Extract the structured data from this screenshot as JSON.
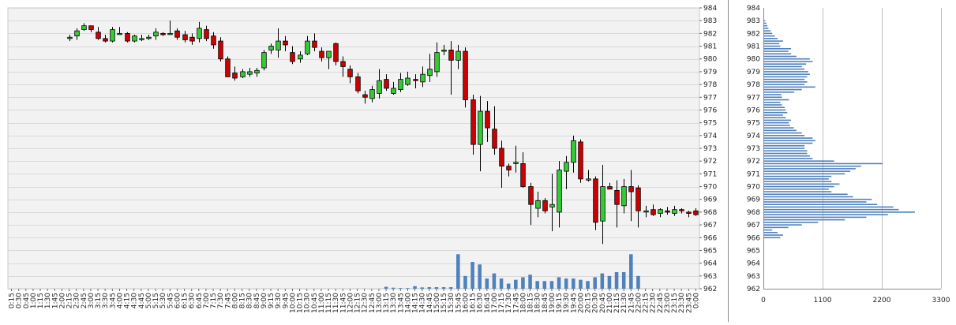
{
  "chart_data": [
    {
      "type": "candlestick",
      "ylim": [
        962,
        984
      ],
      "y_ticks": [
        "962",
        "963",
        "964",
        "965",
        "966",
        "967",
        "968",
        "969",
        "970",
        "971",
        "972",
        "973",
        "974",
        "975",
        "976",
        "977",
        "978",
        "979",
        "980",
        "981",
        "982",
        "983",
        "984"
      ],
      "x_labels": [
        "0:15",
        "0:30",
        "0:45",
        "1:00",
        "1:15",
        "1:30",
        "1:45",
        "2:00",
        "2:15",
        "2:30",
        "2:45",
        "3:00",
        "3:15",
        "3:30",
        "3:45",
        "4:00",
        "4:15",
        "4:30",
        "4:45",
        "5:00",
        "5:15",
        "5:30",
        "5:45",
        "6:00",
        "6:15",
        "6:30",
        "6:45",
        "7:00",
        "7:15",
        "7:30",
        "7:45",
        "8:00",
        "8:15",
        "8:30",
        "8:45",
        "9:00",
        "9:15",
        "9:30",
        "9:45",
        "10:00",
        "10:15",
        "10:30",
        "10:45",
        "11:00",
        "11:15",
        "11:30",
        "11:45",
        "12:00",
        "12:15",
        "12:30",
        "12:45",
        "13:00",
        "13:15",
        "13:30",
        "13:45",
        "14:00",
        "14:15",
        "14:30",
        "14:45",
        "15:00",
        "15:15",
        "15:30",
        "15:45",
        "16:00",
        "16:15",
        "16:30",
        "16:45",
        "17:00",
        "17:15",
        "17:30",
        "17:45",
        "18:00",
        "18:15",
        "18:30",
        "18:45",
        "19:00",
        "19:15",
        "19:30",
        "19:45",
        "20:00",
        "20:15",
        "20:30",
        "20:45",
        "21:00",
        "21:15",
        "21:30",
        "21:45",
        "22:00",
        "22:15",
        "22:30",
        "22:45",
        "23:00",
        "23:15",
        "23:30",
        "23:45",
        "0:00"
      ],
      "candles": [
        {
          "x": "2:15",
          "o": 981.6,
          "h": 981.9,
          "l": 981.4,
          "c": 981.7
        },
        {
          "x": "2:30",
          "o": 981.8,
          "h": 982.4,
          "l": 981.5,
          "c": 982.2
        },
        {
          "x": "2:45",
          "o": 982.3,
          "h": 982.8,
          "l": 982.2,
          "c": 982.6
        },
        {
          "x": "3:00",
          "o": 982.6,
          "h": 982.6,
          "l": 982.1,
          "c": 982.3
        },
        {
          "x": "3:15",
          "o": 982.1,
          "h": 982.5,
          "l": 981.5,
          "c": 981.6
        },
        {
          "x": "3:30",
          "o": 981.6,
          "h": 981.9,
          "l": 981.3,
          "c": 981.4
        },
        {
          "x": "3:45",
          "o": 981.4,
          "h": 982.5,
          "l": 981.3,
          "c": 982.3
        },
        {
          "x": "4:00",
          "o": 982.0,
          "h": 982.5,
          "l": 981.9,
          "c": 982.0
        },
        {
          "x": "4:15",
          "o": 982.0,
          "h": 982.1,
          "l": 981.3,
          "c": 981.4
        },
        {
          "x": "4:30",
          "o": 981.4,
          "h": 981.9,
          "l": 981.3,
          "c": 981.8
        },
        {
          "x": "4:45",
          "o": 981.6,
          "h": 981.9,
          "l": 981.4,
          "c": 981.6
        },
        {
          "x": "5:00",
          "o": 981.6,
          "h": 981.9,
          "l": 981.5,
          "c": 981.7
        },
        {
          "x": "5:15",
          "o": 981.8,
          "h": 982.4,
          "l": 981.5,
          "c": 982.1
        },
        {
          "x": "5:30",
          "o": 982.0,
          "h": 982.1,
          "l": 981.8,
          "c": 981.9
        },
        {
          "x": "5:45",
          "o": 982.0,
          "h": 983.0,
          "l": 982.0,
          "c": 982.0
        },
        {
          "x": "6:00",
          "o": 982.2,
          "h": 982.4,
          "l": 981.5,
          "c": 981.7
        },
        {
          "x": "6:15",
          "o": 981.9,
          "h": 982.2,
          "l": 981.3,
          "c": 981.5
        },
        {
          "x": "6:30",
          "o": 981.7,
          "h": 982.0,
          "l": 981.1,
          "c": 981.4
        },
        {
          "x": "6:45",
          "o": 981.6,
          "h": 982.9,
          "l": 981.3,
          "c": 982.4
        },
        {
          "x": "7:00",
          "o": 982.3,
          "h": 982.6,
          "l": 981.4,
          "c": 981.6
        },
        {
          "x": "7:15",
          "o": 981.8,
          "h": 982.1,
          "l": 980.8,
          "c": 981.1
        },
        {
          "x": "7:30",
          "o": 981.4,
          "h": 981.7,
          "l": 979.8,
          "c": 980.0
        },
        {
          "x": "7:45",
          "o": 980.0,
          "h": 980.2,
          "l": 978.6,
          "c": 978.6
        },
        {
          "x": "8:00",
          "o": 978.9,
          "h": 979.4,
          "l": 978.3,
          "c": 978.5
        },
        {
          "x": "8:15",
          "o": 978.6,
          "h": 979.2,
          "l": 978.5,
          "c": 979.0
        },
        {
          "x": "8:30",
          "o": 978.8,
          "h": 979.3,
          "l": 978.6,
          "c": 979.0
        },
        {
          "x": "8:45",
          "o": 978.9,
          "h": 979.3,
          "l": 978.6,
          "c": 979.1
        },
        {
          "x": "9:00",
          "o": 979.3,
          "h": 980.7,
          "l": 979.1,
          "c": 980.5
        },
        {
          "x": "9:15",
          "o": 980.7,
          "h": 981.2,
          "l": 980.4,
          "c": 981.0
        },
        {
          "x": "9:30",
          "o": 980.7,
          "h": 982.4,
          "l": 980.1,
          "c": 981.4
        },
        {
          "x": "9:45",
          "o": 981.4,
          "h": 981.8,
          "l": 980.6,
          "c": 981.1
        },
        {
          "x": "10:00",
          "o": 980.5,
          "h": 981.0,
          "l": 979.6,
          "c": 979.8
        },
        {
          "x": "10:15",
          "o": 980.0,
          "h": 980.6,
          "l": 979.7,
          "c": 980.3
        },
        {
          "x": "10:30",
          "o": 980.4,
          "h": 981.8,
          "l": 980.3,
          "c": 981.4
        },
        {
          "x": "10:45",
          "o": 981.4,
          "h": 982.0,
          "l": 980.6,
          "c": 980.9
        },
        {
          "x": "11:00",
          "o": 980.6,
          "h": 980.9,
          "l": 979.8,
          "c": 980.1
        },
        {
          "x": "11:15",
          "o": 980.1,
          "h": 980.6,
          "l": 979.2,
          "c": 980.6
        },
        {
          "x": "11:30",
          "o": 981.2,
          "h": 981.3,
          "l": 979.5,
          "c": 979.8
        },
        {
          "x": "11:45",
          "o": 979.8,
          "h": 980.2,
          "l": 978.6,
          "c": 979.4
        },
        {
          "x": "12:00",
          "o": 979.2,
          "h": 979.5,
          "l": 978.1,
          "c": 978.6
        },
        {
          "x": "12:15",
          "o": 978.6,
          "h": 978.9,
          "l": 977.3,
          "c": 977.5
        },
        {
          "x": "12:30",
          "o": 977.2,
          "h": 977.5,
          "l": 976.5,
          "c": 977.0
        },
        {
          "x": "12:45",
          "o": 976.9,
          "h": 977.9,
          "l": 976.6,
          "c": 977.6
        },
        {
          "x": "13:00",
          "o": 977.3,
          "h": 979.2,
          "l": 976.9,
          "c": 978.3
        },
        {
          "x": "13:15",
          "o": 978.4,
          "h": 978.8,
          "l": 977.5,
          "c": 977.7
        },
        {
          "x": "13:30",
          "o": 977.3,
          "h": 978.2,
          "l": 977.2,
          "c": 977.7
        },
        {
          "x": "13:45",
          "o": 977.6,
          "h": 978.9,
          "l": 977.4,
          "c": 978.4
        },
        {
          "x": "14:00",
          "o": 978.0,
          "h": 979.0,
          "l": 977.9,
          "c": 978.5
        },
        {
          "x": "14:15",
          "o": 978.4,
          "h": 978.8,
          "l": 977.7,
          "c": 978.3
        },
        {
          "x": "14:30",
          "o": 978.2,
          "h": 979.4,
          "l": 977.8,
          "c": 978.8
        },
        {
          "x": "14:45",
          "o": 978.7,
          "h": 980.4,
          "l": 978.2,
          "c": 979.2
        },
        {
          "x": "15:00",
          "o": 979.0,
          "h": 981.3,
          "l": 978.6,
          "c": 980.5
        },
        {
          "x": "15:15",
          "o": 980.6,
          "h": 981.1,
          "l": 980.3,
          "c": 980.7
        },
        {
          "x": "15:30",
          "o": 980.7,
          "h": 981.4,
          "l": 977.2,
          "c": 979.9
        },
        {
          "x": "15:45",
          "o": 979.9,
          "h": 981.1,
          "l": 979.2,
          "c": 980.6
        },
        {
          "x": "16:00",
          "o": 980.6,
          "h": 980.9,
          "l": 976.2,
          "c": 976.8
        },
        {
          "x": "16:15",
          "o": 976.8,
          "h": 977.2,
          "l": 972.5,
          "c": 973.3
        },
        {
          "x": "16:30",
          "o": 973.3,
          "h": 977.1,
          "l": 971.2,
          "c": 975.9
        },
        {
          "x": "16:45",
          "o": 975.9,
          "h": 976.7,
          "l": 973.5,
          "c": 974.6
        },
        {
          "x": "17:00",
          "o": 974.5,
          "h": 976.3,
          "l": 972.5,
          "c": 973.0
        },
        {
          "x": "17:15",
          "o": 973.0,
          "h": 973.6,
          "l": 969.9,
          "c": 971.6
        },
        {
          "x": "17:30",
          "o": 971.6,
          "h": 971.8,
          "l": 970.8,
          "c": 971.3
        },
        {
          "x": "17:45",
          "o": 971.8,
          "h": 973.2,
          "l": 971.1,
          "c": 971.9
        },
        {
          "x": "18:00",
          "o": 971.8,
          "h": 972.7,
          "l": 969.9,
          "c": 970.0
        },
        {
          "x": "18:15",
          "o": 970.0,
          "h": 970.3,
          "l": 967.0,
          "c": 968.6
        },
        {
          "x": "18:30",
          "o": 968.3,
          "h": 969.6,
          "l": 967.6,
          "c": 968.9
        },
        {
          "x": "18:45",
          "o": 968.9,
          "h": 969.1,
          "l": 967.9,
          "c": 968.1
        },
        {
          "x": "19:00",
          "o": 968.4,
          "h": 971.0,
          "l": 966.5,
          "c": 968.6
        },
        {
          "x": "19:15",
          "o": 968.0,
          "h": 972.0,
          "l": 966.8,
          "c": 971.3
        },
        {
          "x": "19:30",
          "o": 971.2,
          "h": 972.4,
          "l": 969.8,
          "c": 971.9
        },
        {
          "x": "19:45",
          "o": 971.9,
          "h": 974.0,
          "l": 971.1,
          "c": 973.6
        },
        {
          "x": "20:00",
          "o": 973.5,
          "h": 973.7,
          "l": 970.3,
          "c": 970.6
        },
        {
          "x": "20:15",
          "o": 970.6,
          "h": 971.3,
          "l": 970.4,
          "c": 970.6
        },
        {
          "x": "20:30",
          "o": 970.6,
          "h": 970.8,
          "l": 966.6,
          "c": 967.2
        },
        {
          "x": "20:45",
          "o": 967.3,
          "h": 971.7,
          "l": 965.5,
          "c": 970.0
        },
        {
          "x": "21:00",
          "o": 970.0,
          "h": 970.3,
          "l": 969.8,
          "c": 969.8
        },
        {
          "x": "21:15",
          "o": 969.7,
          "h": 970.5,
          "l": 966.8,
          "c": 968.6
        },
        {
          "x": "21:30",
          "o": 968.5,
          "h": 970.6,
          "l": 967.9,
          "c": 970.0
        },
        {
          "x": "21:45",
          "o": 970.0,
          "h": 971.3,
          "l": 967.3,
          "c": 969.6
        },
        {
          "x": "22:00",
          "o": 969.9,
          "h": 970.1,
          "l": 966.8,
          "c": 968.1
        },
        {
          "x": "22:15",
          "o": 968.1,
          "h": 968.5,
          "l": 967.6,
          "c": 968.1
        },
        {
          "x": "22:30",
          "o": 968.2,
          "h": 968.6,
          "l": 967.7,
          "c": 967.8
        },
        {
          "x": "22:45",
          "o": 967.9,
          "h": 968.3,
          "l": 967.6,
          "c": 968.2
        },
        {
          "x": "23:00",
          "o": 968.1,
          "h": 968.4,
          "l": 967.8,
          "c": 968.0
        },
        {
          "x": "23:15",
          "o": 967.9,
          "h": 968.5,
          "l": 967.7,
          "c": 968.2
        },
        {
          "x": "23:30",
          "o": 968.2,
          "h": 968.3,
          "l": 967.9,
          "c": 968.1
        },
        {
          "x": "23:45",
          "o": 968.0,
          "h": 968.1,
          "l": 967.6,
          "c": 967.9
        },
        {
          "x": "0:00",
          "o": 968.1,
          "h": 968.3,
          "l": 967.7,
          "c": 967.8
        }
      ],
      "volume": {
        "x": [
          "13:15",
          "13:30",
          "13:45",
          "14:00",
          "14:15",
          "14:30",
          "14:45",
          "15:00",
          "15:15",
          "15:30",
          "15:45",
          "16:00",
          "16:15",
          "16:30",
          "16:45",
          "17:00",
          "17:15",
          "17:30",
          "17:45",
          "18:00",
          "18:15",
          "18:30",
          "18:45",
          "19:00",
          "19:15",
          "19:30",
          "19:45",
          "20:00",
          "20:15",
          "20:30",
          "20:45",
          "21:00",
          "21:15",
          "21:30",
          "21:45",
          "22:00"
        ],
        "values": [
          0.15,
          0.08,
          0.05,
          0.05,
          0.2,
          0.1,
          0.12,
          0.12,
          0.12,
          0.12,
          2.7,
          1.0,
          2.1,
          1.9,
          0.8,
          1.2,
          0.8,
          0.4,
          0.7,
          0.9,
          1.1,
          0.6,
          0.6,
          0.6,
          0.9,
          0.8,
          0.8,
          0.7,
          0.6,
          0.9,
          1.2,
          1.0,
          1.3,
          1.3,
          2.7,
          1.0
        ]
      },
      "colors": {
        "up": "#33cc33",
        "down": "#cc0000",
        "volume": "#4f81bd",
        "plot_bg": "#f2f2f2",
        "grid": "#d9d9d9"
      }
    },
    {
      "type": "bar",
      "orientation": "horizontal",
      "xlim": [
        0,
        3300
      ],
      "x_ticks": [
        "0",
        "1100",
        "2200",
        "3300"
      ],
      "ylim": [
        962,
        984
      ],
      "y_ticks": [
        "962",
        "963",
        "964",
        "965",
        "966",
        "967",
        "968",
        "969",
        "970",
        "971",
        "972",
        "973",
        "974",
        "975",
        "976",
        "977",
        "978",
        "979",
        "980",
        "981",
        "982",
        "983",
        "984"
      ],
      "levels": [
        966.0,
        966.2,
        966.4,
        966.6,
        966.8,
        967.0,
        967.2,
        967.4,
        967.6,
        967.8,
        968.0,
        968.2,
        968.4,
        968.6,
        968.8,
        969.0,
        969.2,
        969.4,
        969.6,
        969.8,
        970.0,
        970.2,
        970.4,
        970.6,
        970.8,
        971.0,
        971.2,
        971.4,
        971.6,
        971.8,
        972.0,
        972.2,
        972.4,
        972.6,
        972.8,
        973.0,
        973.2,
        973.4,
        973.6,
        973.8,
        974.0,
        974.2,
        974.4,
        974.6,
        974.8,
        975.0,
        975.2,
        975.4,
        975.6,
        975.8,
        976.0,
        976.2,
        976.4,
        976.6,
        976.8,
        977.0,
        977.2,
        977.4,
        977.6,
        977.8,
        978.0,
        978.2,
        978.4,
        978.6,
        978.8,
        979.0,
        979.2,
        979.4,
        979.6,
        979.8,
        980.0,
        980.2,
        980.4,
        980.6,
        980.8,
        981.0,
        981.2,
        981.4,
        981.6,
        981.8,
        982.0,
        982.2,
        982.4,
        982.6,
        982.8,
        983.0
      ],
      "values": [
        300,
        350,
        250,
        150,
        450,
        700,
        1000,
        1500,
        1900,
        2300,
        2800,
        2500,
        2400,
        2100,
        1900,
        2000,
        1650,
        1550,
        1250,
        1200,
        1300,
        1400,
        1250,
        1200,
        1250,
        1500,
        1600,
        1700,
        1800,
        2200,
        1300,
        900,
        850,
        800,
        800,
        750,
        750,
        900,
        950,
        900,
        750,
        700,
        600,
        550,
        480,
        460,
        500,
        400,
        350,
        430,
        400,
        380,
        330,
        300,
        460,
        330,
        320,
        560,
        700,
        950,
        750,
        800,
        750,
        800,
        850,
        820,
        750,
        700,
        780,
        900,
        850,
        600,
        500,
        450,
        500,
        300,
        280,
        350,
        250,
        200,
        150,
        120,
        80,
        60,
        40,
        20
      ],
      "colors": {
        "bar": "#4f81bd",
        "grid": "#c0c0c0"
      }
    }
  ]
}
